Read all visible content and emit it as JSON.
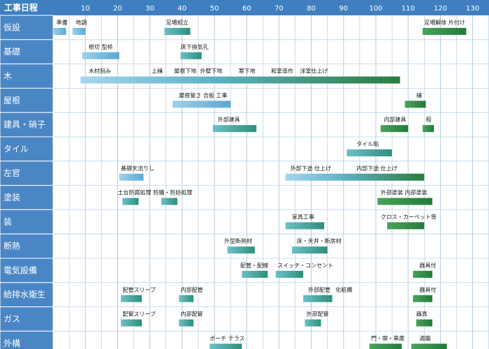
{
  "chart_data": {
    "type": "bar",
    "title": "",
    "corner_label": "工事日程",
    "xlim": [
      0,
      135
    ],
    "xticks": [
      10,
      20,
      30,
      40,
      50,
      60,
      70,
      80,
      90,
      100,
      110,
      120,
      130
    ],
    "grid": true,
    "colors": {
      "header": "#3f7fc0",
      "row_label": "#4a86c4",
      "grid": "#a9c6e0",
      "row_line": "#bdd4e8",
      "bar_light_start": "#9fd0ec",
      "bar_light_end": "#5aa8d6",
      "bar_mid_start": "#5fb7c4",
      "bar_mid_end": "#2e8f7a",
      "bar_dark_start": "#4aa35a",
      "bar_dark_end": "#237a3a"
    },
    "rows": [
      {
        "category": "仮設",
        "labels": [
          {
            "text": "準備",
            "x": 1
          },
          {
            "text": "地調",
            "x": 7
          },
          {
            "text": "足場組立",
            "x": 35
          },
          {
            "text": "足場解体 片付け",
            "x": 115
          }
        ],
        "bars": [
          {
            "start": 0,
            "end": 4,
            "shade": "light"
          },
          {
            "start": 6,
            "end": 10,
            "shade": "light"
          },
          {
            "start": 34.5,
            "end": 42.5,
            "shade": "mid"
          },
          {
            "start": 114.5,
            "end": 128,
            "shade": "dark"
          }
        ]
      },
      {
        "category": "基礎",
        "labels": [
          {
            "text": "根切 型枠",
            "x": 11
          },
          {
            "text": "床下換気孔",
            "x": 39.5
          }
        ],
        "bars": [
          {
            "start": 9,
            "end": 20.5,
            "shade": "light"
          },
          {
            "start": 39.5,
            "end": 46,
            "shade": "mid"
          }
        ]
      },
      {
        "category": "木",
        "labels": [
          {
            "text": "木材刻み",
            "x": 11
          },
          {
            "text": "上棟",
            "x": 30.5
          },
          {
            "text": "屋根下地",
            "x": 37.5
          },
          {
            "text": "外壁下地",
            "x": 45.5
          },
          {
            "text": "寒下地",
            "x": 57.5
          },
          {
            "text": "和室造作",
            "x": 67.5
          },
          {
            "text": "洋室仕上げ",
            "x": 76.5
          }
        ],
        "bars": [
          {
            "start": 8.5,
            "end": 107.5,
            "shade": "gradient"
          }
        ]
      },
      {
        "category": "屋根",
        "labels": [
          {
            "text": "屋根管さ 合板 工事",
            "x": 39
          },
          {
            "text": "樋",
            "x": 112.5
          }
        ],
        "bars": [
          {
            "start": 37,
            "end": 55,
            "shade": "light"
          },
          {
            "start": 109,
            "end": 115.5,
            "shade": "dark"
          }
        ]
      },
      {
        "category": "建具・硝子",
        "labels": [
          {
            "text": "外部建具",
            "x": 51
          },
          {
            "text": "内部建具",
            "x": 102.5
          },
          {
            "text": "程",
            "x": 115.5
          }
        ],
        "bars": [
          {
            "start": 49.5,
            "end": 63,
            "shade": "mid"
          },
          {
            "start": 101.5,
            "end": 110,
            "shade": "dark"
          },
          {
            "start": 114.5,
            "end": 118,
            "shade": "dark"
          }
        ]
      },
      {
        "category": "タイル",
        "labels": [
          {
            "text": "タイル貼",
            "x": 94
          }
        ],
        "bars": [
          {
            "start": 91,
            "end": 105,
            "shade": "mid"
          }
        ]
      },
      {
        "category": "左官",
        "labels": [
          {
            "text": "基礎天流りし",
            "x": 21
          },
          {
            "text": "外部下途 仕上げ",
            "x": 73.5
          },
          {
            "text": "内部下途 仕上げ",
            "x": 94
          }
        ],
        "bars": [
          {
            "start": 20.5,
            "end": 28,
            "shade": "light"
          },
          {
            "start": 72,
            "end": 115,
            "shade": "gradient"
          }
        ]
      },
      {
        "category": "塗装",
        "labels": [
          {
            "text": "土台防腐処理",
            "x": 20
          },
          {
            "text": "防蟻・防妨処理",
            "x": 31
          },
          {
            "text": "外部塗装 内部塗装",
            "x": 101.5
          }
        ],
        "bars": [
          {
            "start": 21.5,
            "end": 26.5,
            "shade": "mid"
          },
          {
            "start": 33.5,
            "end": 38.5,
            "shade": "mid"
          },
          {
            "start": 100.5,
            "end": 117.5,
            "shade": "dark"
          }
        ]
      },
      {
        "category": "装",
        "labels": [
          {
            "text": "家具工事",
            "x": 74
          },
          {
            "text": "クロス・カーペット等",
            "x": 101.5
          }
        ],
        "bars": [
          {
            "start": 72,
            "end": 84,
            "shade": "mid"
          },
          {
            "start": 103.5,
            "end": 115,
            "shade": "dark"
          }
        ]
      },
      {
        "category": "断熱",
        "labels": [
          {
            "text": "外型断熱材",
            "x": 53
          },
          {
            "text": "床・天井・断房材",
            "x": 75.5
          }
        ],
        "bars": [
          {
            "start": 54,
            "end": 62.5,
            "shade": "mid"
          },
          {
            "start": 74,
            "end": 85,
            "shade": "mid"
          }
        ]
      },
      {
        "category": "電気設備",
        "labels": [
          {
            "text": "配管・配線",
            "x": 58
          },
          {
            "text": "スイッチ・コンセント",
            "x": 69.5
          },
          {
            "text": "器具付",
            "x": 113.5
          }
        ],
        "bars": [
          {
            "start": 58.5,
            "end": 66.5,
            "shade": "mid"
          },
          {
            "start": 69,
            "end": 77.5,
            "shade": "mid"
          },
          {
            "start": 111.5,
            "end": 117.5,
            "shade": "dark"
          }
        ]
      },
      {
        "category": "給排水衛生",
        "labels": [
          {
            "text": "配管スリーブ",
            "x": 21.5
          },
          {
            "text": "内部配管",
            "x": 39.5
          },
          {
            "text": "外部配管",
            "x": 79
          },
          {
            "text": "化粧欄",
            "x": 87.5
          },
          {
            "text": "器具付",
            "x": 113.5
          }
        ],
        "bars": [
          {
            "start": 21,
            "end": 27.5,
            "shade": "mid"
          },
          {
            "start": 39,
            "end": 43.5,
            "shade": "mid"
          },
          {
            "start": 77.5,
            "end": 86.5,
            "shade": "mid"
          },
          {
            "start": 111.5,
            "end": 117.5,
            "shade": "dark"
          }
        ]
      },
      {
        "category": "ガス",
        "labels": [
          {
            "text": "配管スリーブ",
            "x": 21.5
          },
          {
            "text": "内部配管",
            "x": 39.5
          },
          {
            "text": "外部配管",
            "x": 78.5
          },
          {
            "text": "器具",
            "x": 112.5
          }
        ],
        "bars": [
          {
            "start": 21,
            "end": 27.5,
            "shade": "mid"
          },
          {
            "start": 39,
            "end": 43.5,
            "shade": "mid"
          },
          {
            "start": 78,
            "end": 83,
            "shade": "mid"
          },
          {
            "start": 112.5,
            "end": 117.5,
            "shade": "dark"
          }
        ]
      },
      {
        "category": "外構",
        "labels": [
          {
            "text": "ポーチ テラス",
            "x": 48.5
          },
          {
            "text": "門・塀・車庫",
            "x": 98.5
          },
          {
            "text": "週園",
            "x": 113.5
          }
        ],
        "bars": [
          {
            "start": 48.5,
            "end": 58.5,
            "shade": "mid"
          },
          {
            "start": 98,
            "end": 108,
            "shade": "dark"
          },
          {
            "start": 111,
            "end": 122,
            "shade": "dark"
          }
        ]
      }
    ]
  }
}
